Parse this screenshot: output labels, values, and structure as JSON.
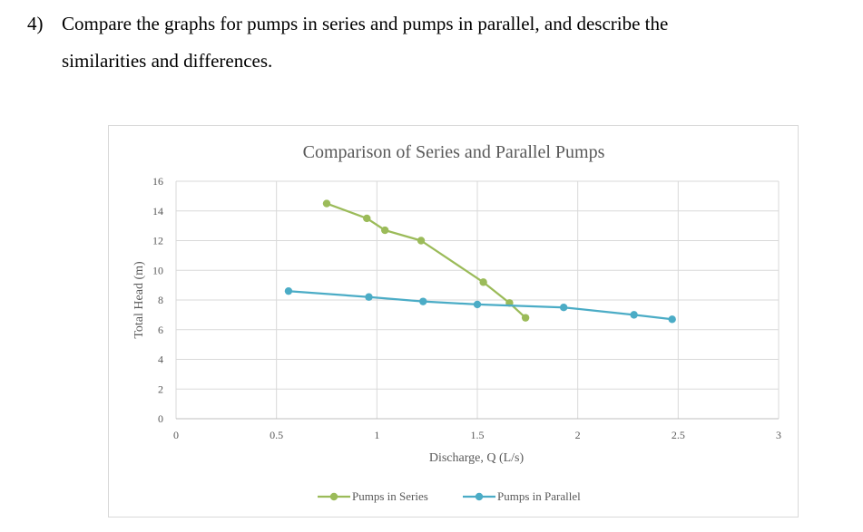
{
  "question": {
    "number": "4)",
    "line1": "Compare the graphs for pumps in series and pumps in parallel, and describe the",
    "line2": "similarities and differences."
  },
  "chart_data": {
    "type": "line",
    "title": "Comparison  of Series and Parallel Pumps",
    "xlabel": "Discharge, Q (L/s)",
    "ylabel": "Total Head (m)",
    "xlim": [
      0,
      3
    ],
    "ylim": [
      0,
      16
    ],
    "x_ticks": [
      0,
      0.5,
      1,
      1.5,
      2,
      2.5,
      3
    ],
    "x_tick_labels": [
      "0",
      "0.5",
      "1",
      "1.5",
      "2",
      "2.5",
      "3"
    ],
    "y_ticks": [
      0,
      2,
      4,
      6,
      8,
      10,
      12,
      14,
      16
    ],
    "y_tick_labels": [
      "0",
      "2",
      "4",
      "6",
      "8",
      "10",
      "12",
      "14",
      "16"
    ],
    "grid": true,
    "legend_position": "bottom",
    "series": [
      {
        "name": "Pumps in Series",
        "color": "#9bbb59",
        "x": [
          0.75,
          0.95,
          1.04,
          1.22,
          1.53,
          1.66,
          1.74
        ],
        "y": [
          14.5,
          13.5,
          12.7,
          12.0,
          9.2,
          7.8,
          6.8
        ]
      },
      {
        "name": "Pumps in Parallel",
        "color": "#4bacc6",
        "x": [
          0.56,
          0.96,
          1.23,
          1.5,
          1.93,
          2.28,
          2.47
        ],
        "y": [
          8.6,
          8.2,
          7.9,
          7.7,
          7.5,
          7.0,
          6.7
        ]
      }
    ]
  }
}
